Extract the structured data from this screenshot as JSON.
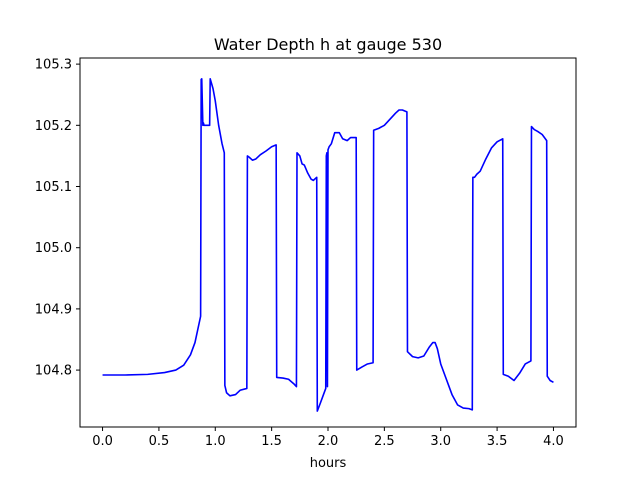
{
  "chart_data": {
    "type": "line",
    "title": "Water Depth h at gauge 530",
    "xlabel": "hours",
    "ylabel": "",
    "xlim": [
      -0.2,
      4.2
    ],
    "ylim": [
      104.707,
      105.31
    ],
    "xticks": [
      "0.0",
      "0.5",
      "1.0",
      "1.5",
      "2.0",
      "2.5",
      "3.0",
      "3.5",
      "4.0"
    ],
    "yticks": [
      "104.8",
      "104.9",
      "105.0",
      "105.1",
      "105.2",
      "105.3"
    ],
    "grid": false,
    "legend": "none",
    "series": [
      {
        "color": "#0000ff",
        "x": [
          0.0,
          0.2,
          0.4,
          0.55,
          0.65,
          0.72,
          0.78,
          0.82,
          0.87,
          0.875,
          0.88,
          0.89,
          0.895,
          0.9,
          0.93,
          0.95,
          0.955,
          0.98,
          1.0,
          1.03,
          1.06,
          1.08,
          1.085,
          1.1,
          1.13,
          1.18,
          1.22,
          1.28,
          1.285,
          1.3,
          1.33,
          1.36,
          1.4,
          1.45,
          1.5,
          1.54,
          1.545,
          1.6,
          1.65,
          1.7,
          1.72,
          1.725,
          1.75,
          1.77,
          1.79,
          1.82,
          1.85,
          1.87,
          1.9,
          1.905,
          1.93,
          1.96,
          1.98,
          1.985,
          1.99,
          1.995,
          2.0,
          2.01,
          2.03,
          2.06,
          2.1,
          2.13,
          2.17,
          2.2,
          2.25,
          2.255,
          2.3,
          2.35,
          2.4,
          2.405,
          2.45,
          2.5,
          2.55,
          2.6,
          2.63,
          2.66,
          2.7,
          2.705,
          2.75,
          2.8,
          2.85,
          2.9,
          2.93,
          2.95,
          2.97,
          3.0,
          3.05,
          3.1,
          3.15,
          3.2,
          3.25,
          3.28,
          3.285,
          3.3,
          3.32,
          3.35,
          3.4,
          3.45,
          3.5,
          3.55,
          3.555,
          3.6,
          3.65,
          3.7,
          3.75,
          3.8,
          3.805,
          3.83,
          3.86,
          3.9,
          3.94,
          3.945,
          3.97,
          4.0
        ],
        "y": [
          104.792,
          104.792,
          104.793,
          104.796,
          104.8,
          104.808,
          104.825,
          104.845,
          104.888,
          105.275,
          105.276,
          105.2,
          105.204,
          105.2,
          105.2,
          105.2,
          105.276,
          105.26,
          105.24,
          105.2,
          105.17,
          105.155,
          104.775,
          104.763,
          104.758,
          104.76,
          104.767,
          104.77,
          105.15,
          105.148,
          105.143,
          105.145,
          105.152,
          105.158,
          105.165,
          105.168,
          104.788,
          104.787,
          104.785,
          104.777,
          104.773,
          105.155,
          105.15,
          105.137,
          105.135,
          105.122,
          105.112,
          105.11,
          105.115,
          104.733,
          104.745,
          104.76,
          104.77,
          105.15,
          105.155,
          104.773,
          105.16,
          105.165,
          105.17,
          105.188,
          105.188,
          105.178,
          105.175,
          105.18,
          105.18,
          104.8,
          104.805,
          104.81,
          104.812,
          105.192,
          105.195,
          105.2,
          105.21,
          105.22,
          105.225,
          105.225,
          105.222,
          104.83,
          104.822,
          104.82,
          104.823,
          104.838,
          104.845,
          104.845,
          104.835,
          104.81,
          104.785,
          104.76,
          104.743,
          104.738,
          104.737,
          104.735,
          105.115,
          105.115,
          105.12,
          105.125,
          105.145,
          105.163,
          105.173,
          105.178,
          104.793,
          104.79,
          104.783,
          104.795,
          104.81,
          104.815,
          105.198,
          105.193,
          105.19,
          105.185,
          105.175,
          104.79,
          104.783,
          104.78
        ]
      }
    ]
  }
}
